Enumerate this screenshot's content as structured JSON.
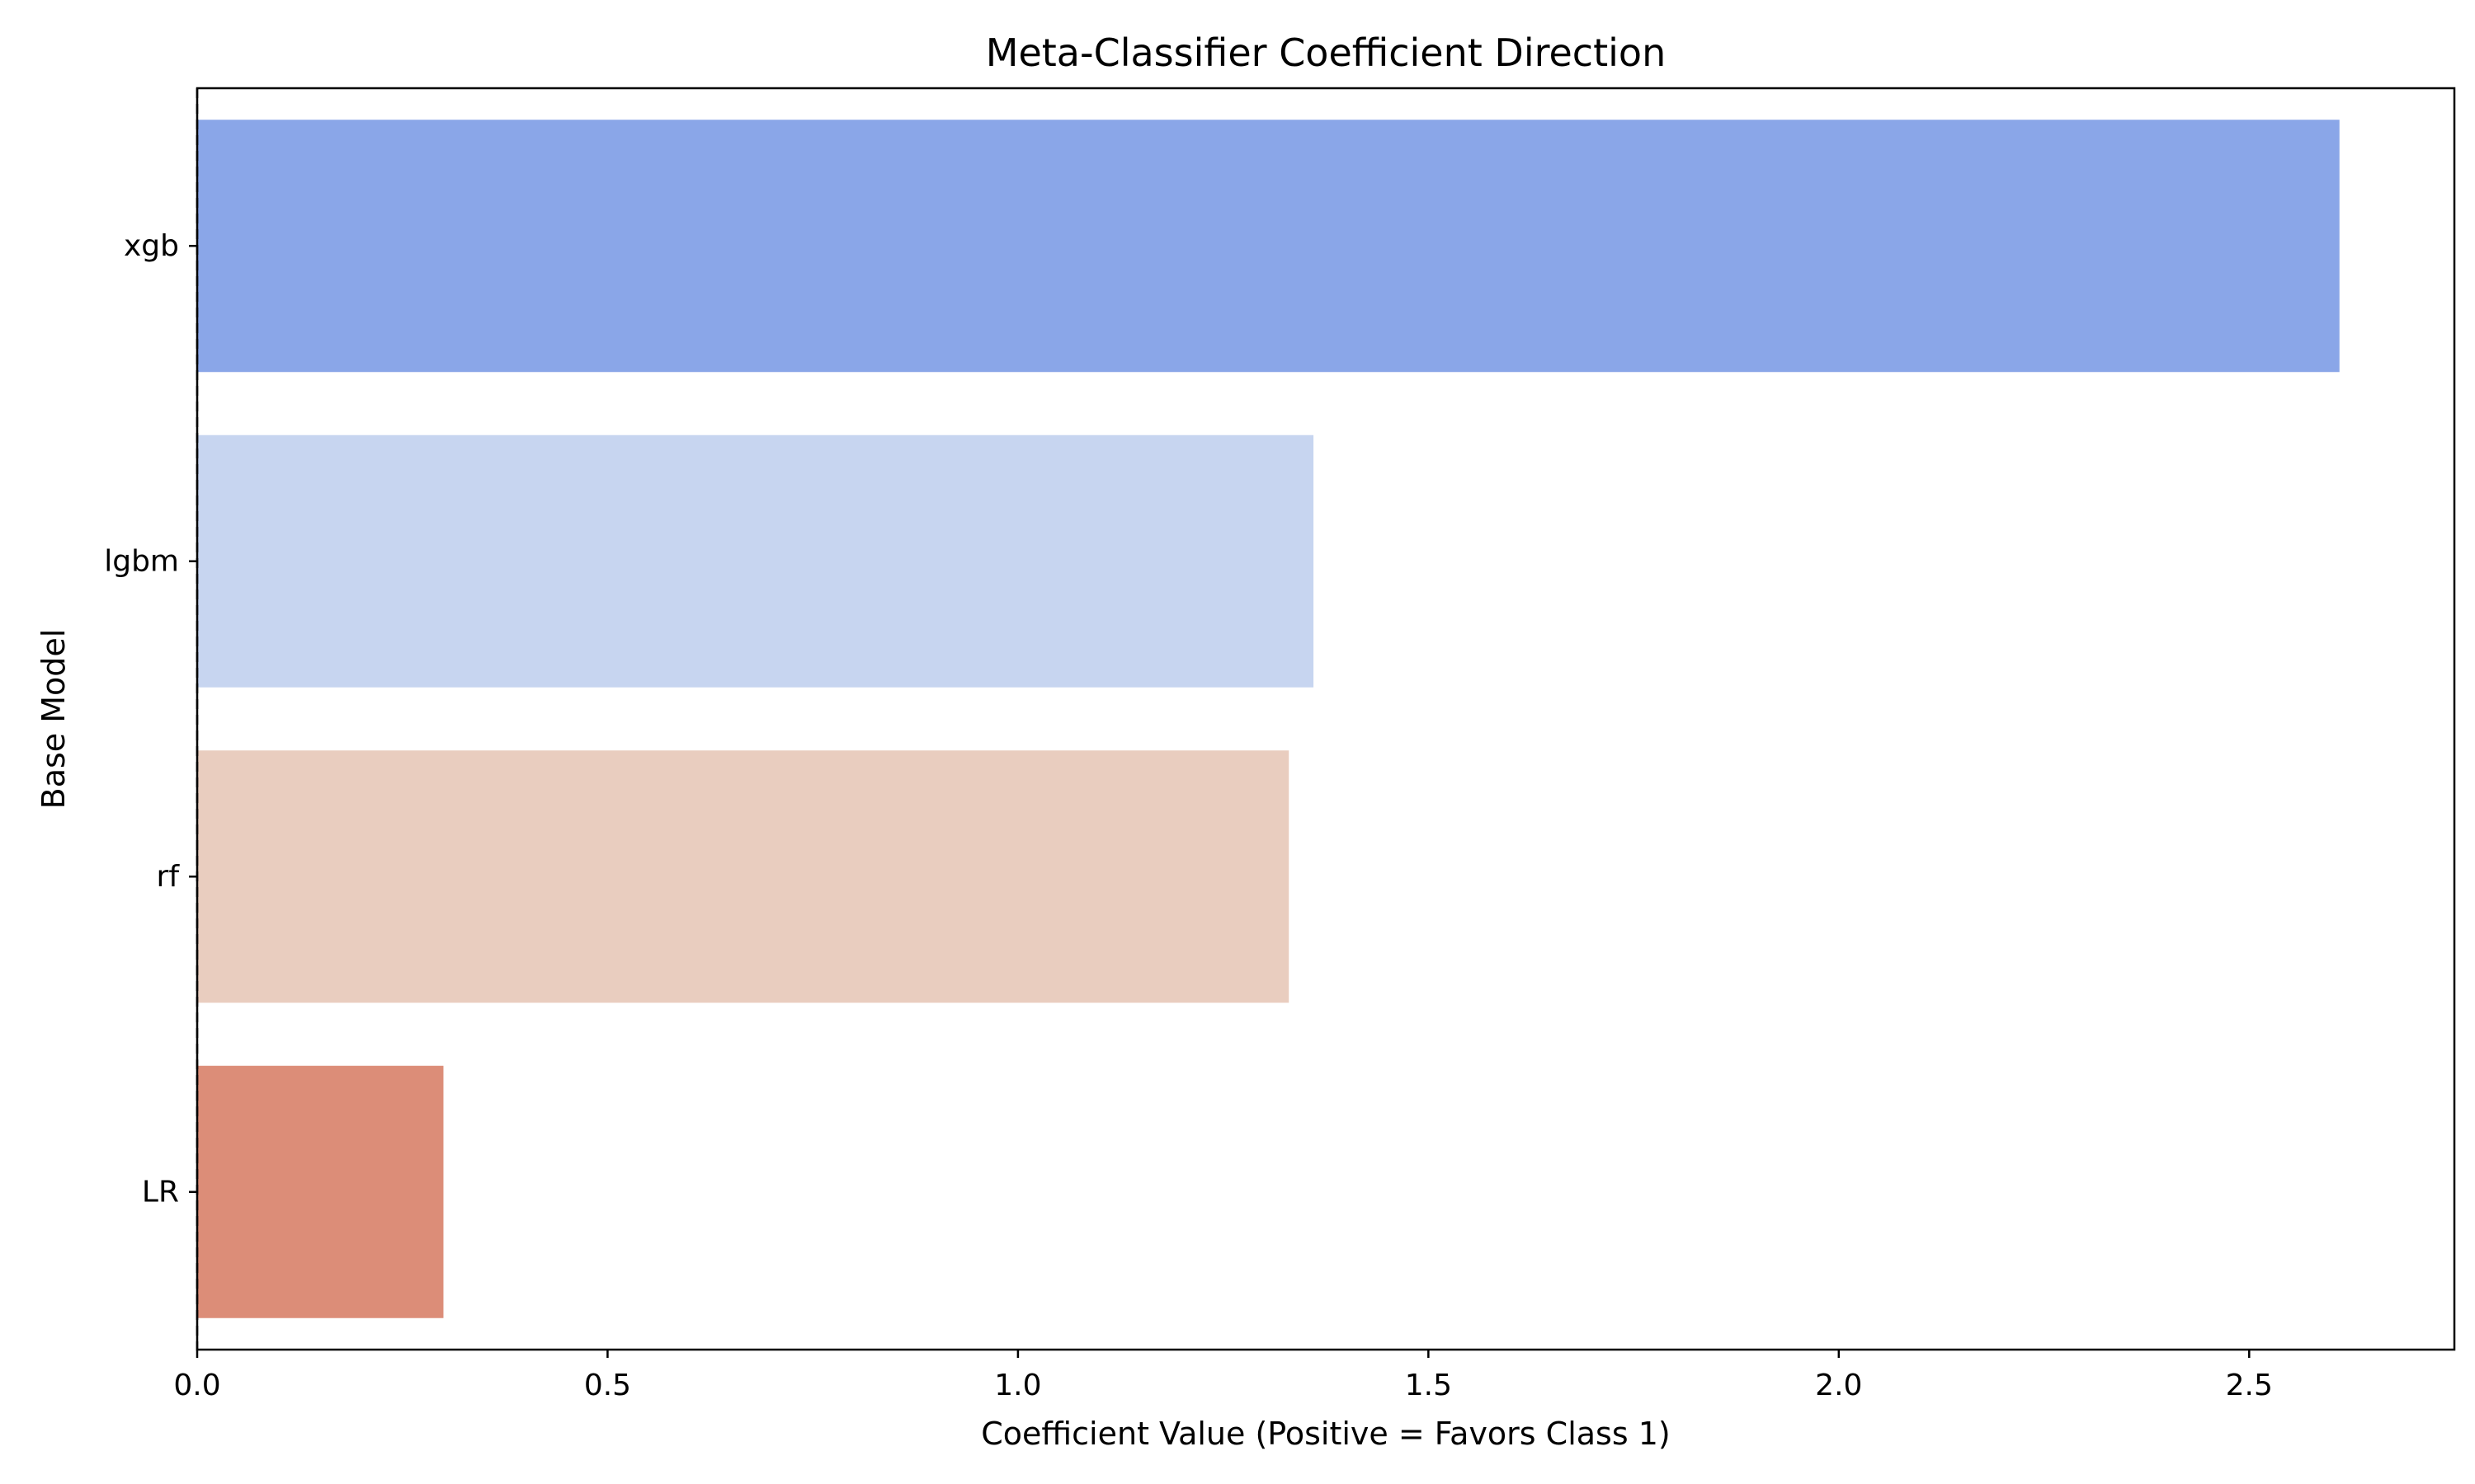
{
  "chart_data": {
    "type": "bar",
    "orientation": "horizontal",
    "title": "Meta-Classifier Coefficient Direction",
    "xlabel": "Coefficient Value (Positive = Favors Class 1)",
    "ylabel": "Base Model",
    "categories": [
      "xgb",
      "lgbm",
      "rf",
      "LR"
    ],
    "values": [
      2.61,
      1.36,
      1.33,
      0.3
    ],
    "colors": [
      "#8aa6e8",
      "#c7d5f0",
      "#e9cdbf",
      "#dc8d78"
    ],
    "xlim": [
      0,
      2.75
    ],
    "xticks": [
      0.0,
      0.5,
      1.0,
      1.5,
      2.0,
      2.5
    ],
    "xtick_labels": [
      "0.0",
      "0.5",
      "1.0",
      "1.5",
      "2.0",
      "2.5"
    ],
    "reference_line": {
      "x": 0,
      "style": "dashed",
      "color": "#000000"
    },
    "grid": false,
    "legend": "none"
  }
}
